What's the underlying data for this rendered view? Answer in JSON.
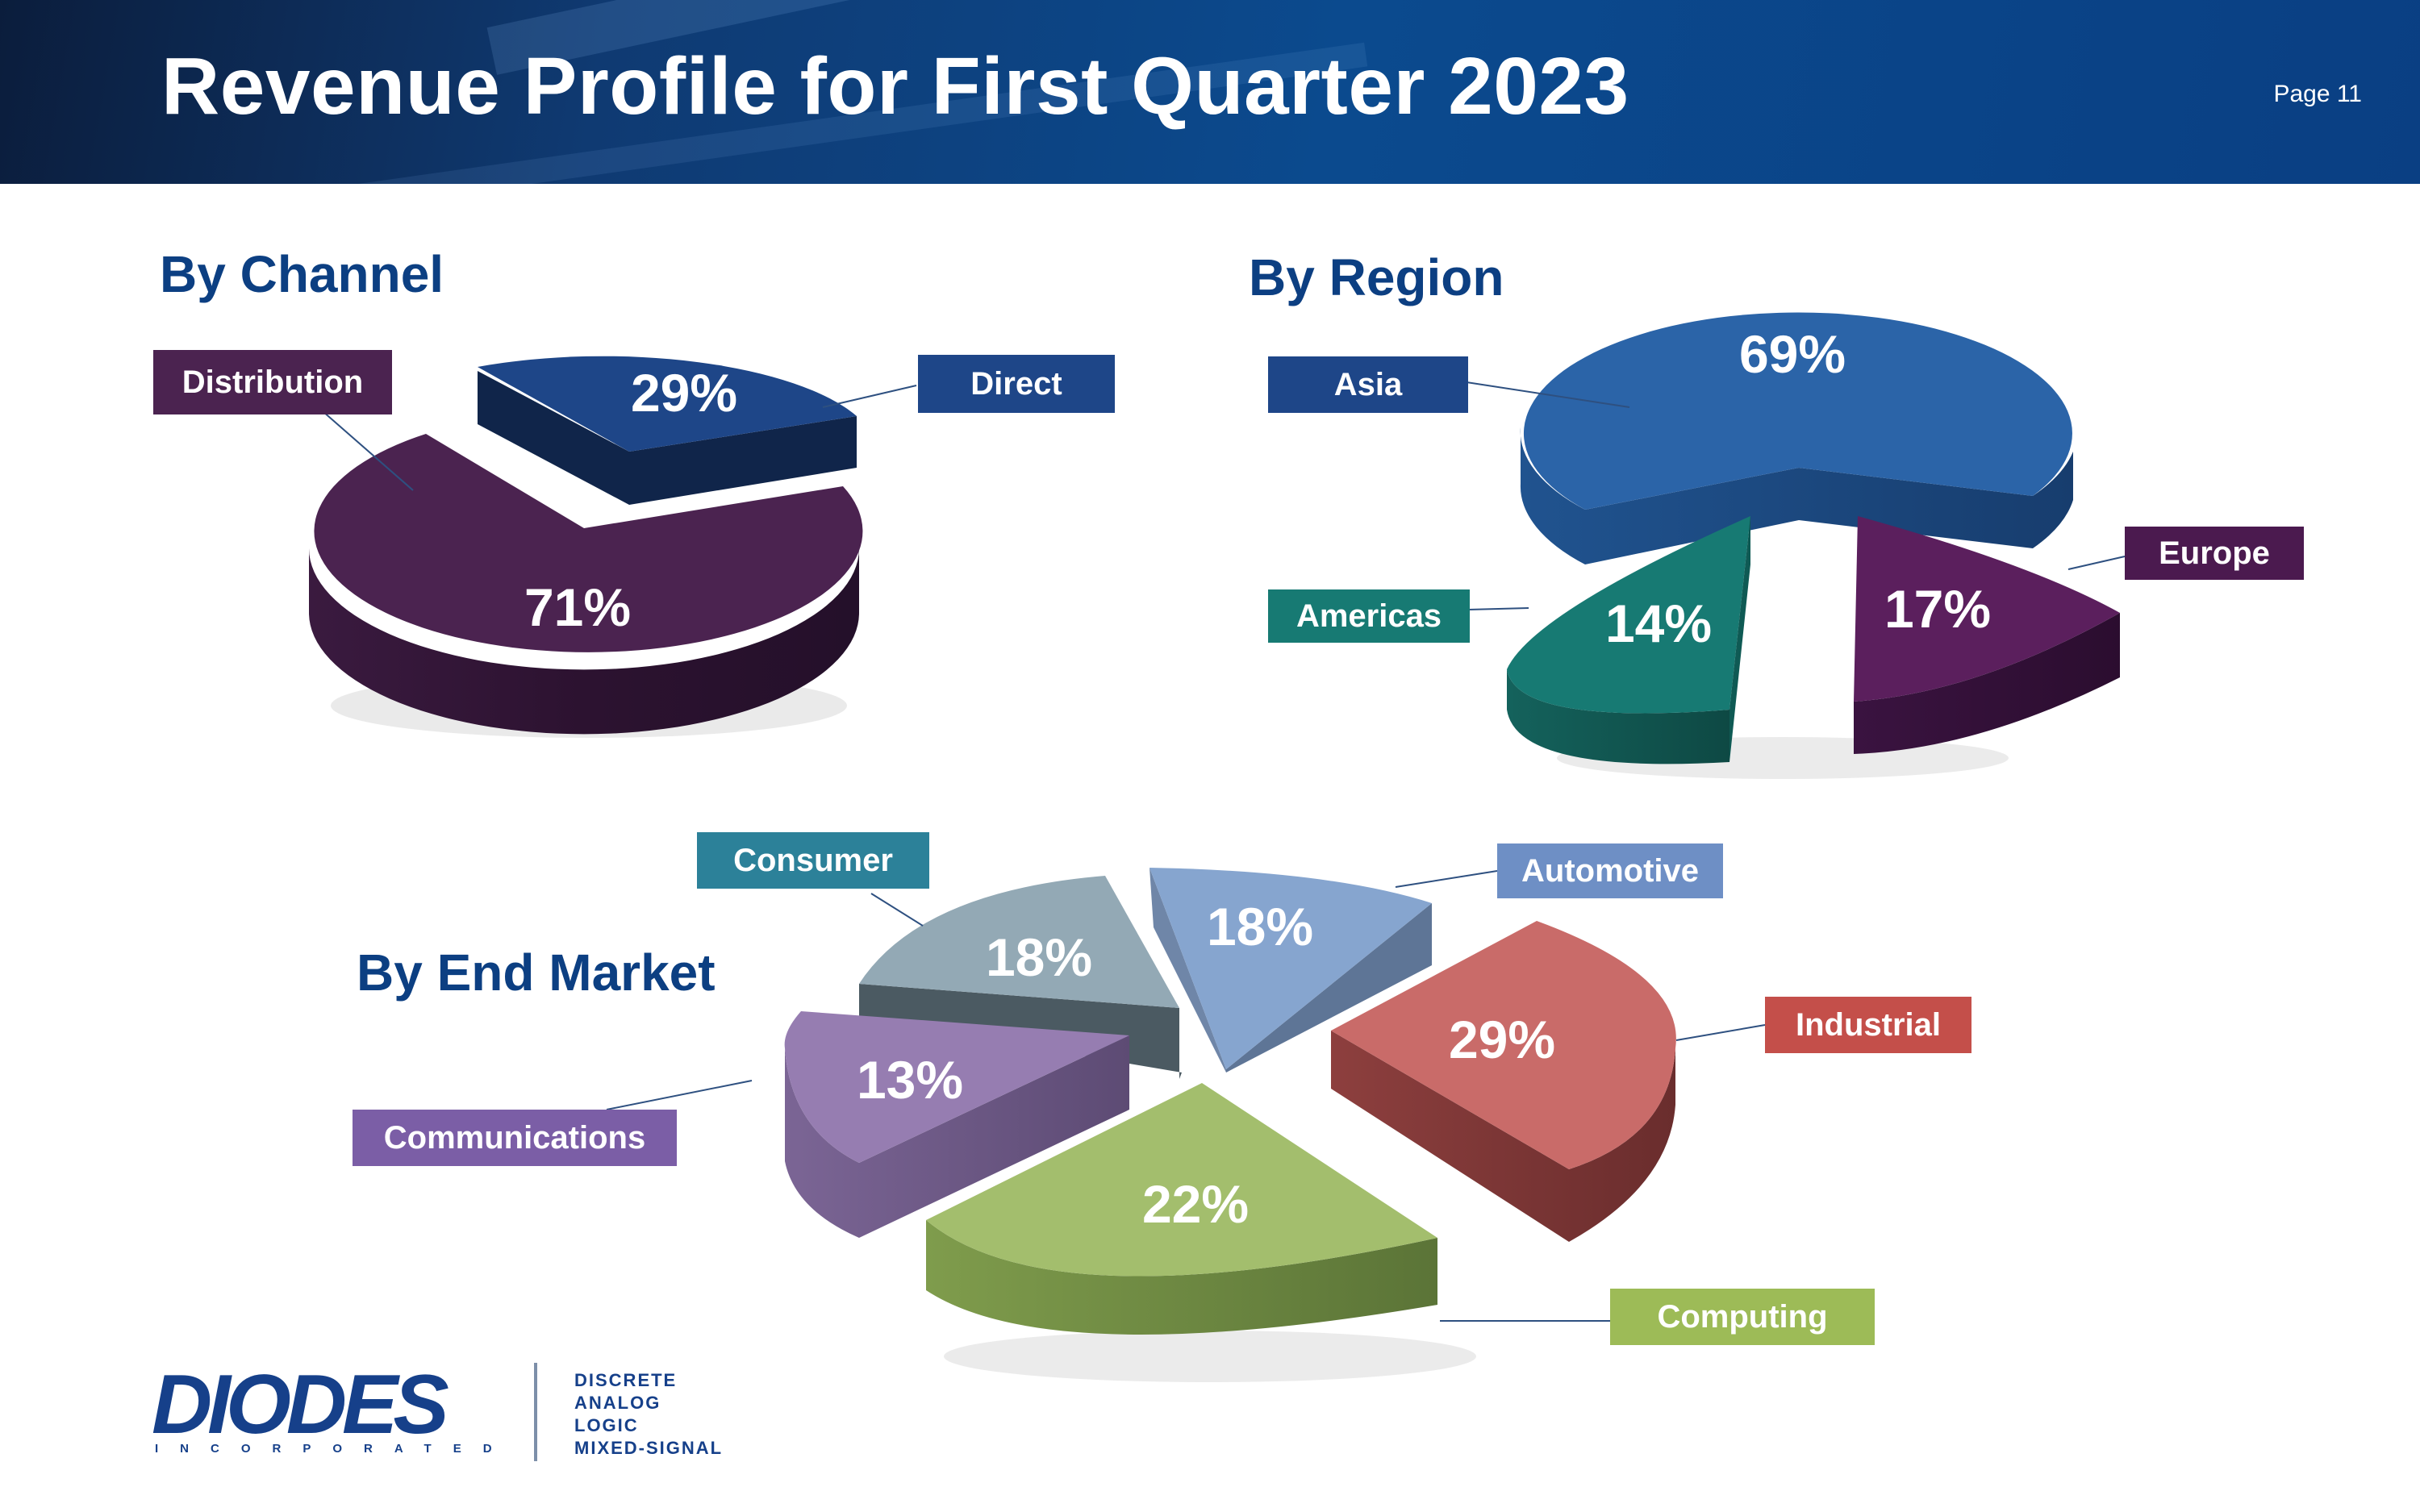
{
  "header": {
    "title": "Revenue Profile for First Quarter 2023",
    "page_label": "Page 11"
  },
  "logo": {
    "name": "DIODES",
    "subtitle": "INCORPORATED",
    "tagline": [
      "DISCRETE",
      "ANALOG",
      "LOGIC",
      "MIXED-SIGNAL"
    ]
  },
  "chart_data": [
    {
      "type": "pie",
      "title": "By Channel",
      "categories": [
        "Distribution",
        "Direct"
      ],
      "values": [
        71,
        29
      ],
      "value_labels": [
        "71%",
        "29%"
      ],
      "colors": [
        "#4b2350",
        "#1e4688"
      ]
    },
    {
      "type": "pie",
      "title": "By Region",
      "categories": [
        "Asia",
        "Europe",
        "Americas"
      ],
      "values": [
        69,
        17,
        14
      ],
      "value_labels": [
        "69%",
        "17%",
        "14%"
      ],
      "colors": [
        "#2b64a8",
        "#5b1f5d",
        "#177a73"
      ]
    },
    {
      "type": "pie",
      "title": "By End Market",
      "categories": [
        "Automotive",
        "Industrial",
        "Computing",
        "Communications",
        "Consumer"
      ],
      "values": [
        18,
        29,
        22,
        13,
        18
      ],
      "value_labels": [
        "18%",
        "29%",
        "22%",
        "13%",
        "18%"
      ],
      "colors": [
        "#86a5cf",
        "#c96b69",
        "#a3be6d",
        "#967db1",
        "#93a9b5"
      ],
      "label_colors": [
        "#6e8fc5",
        "#c44f4a",
        "#9dbb57",
        "#7b5ea6",
        "#2c8199"
      ]
    }
  ]
}
